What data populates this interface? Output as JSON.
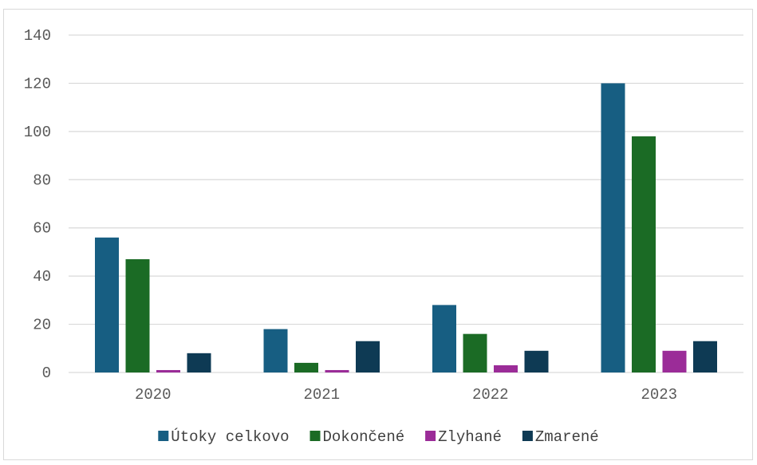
{
  "chart_data": {
    "type": "bar",
    "title": "",
    "xlabel": "",
    "ylabel": "",
    "categories": [
      "2020",
      "2021",
      "2022",
      "2023"
    ],
    "series": [
      {
        "name": "Útoky celkovo",
        "color": "#175e82",
        "values": [
          56,
          18,
          28,
          120
        ]
      },
      {
        "name": "Dokončené",
        "color": "#1b6b25",
        "values": [
          47,
          4,
          16,
          98
        ]
      },
      {
        "name": "Zlyhané",
        "color": "#9b2c98",
        "values": [
          1,
          1,
          3,
          9
        ]
      },
      {
        "name": "Zmarené",
        "color": "#0e3a54",
        "values": [
          8,
          13,
          9,
          13
        ]
      }
    ],
    "ylim": [
      0,
      140
    ],
    "yticks": [
      0,
      20,
      40,
      60,
      80,
      100,
      120,
      140
    ],
    "grid": true,
    "legend_position": "bottom"
  }
}
